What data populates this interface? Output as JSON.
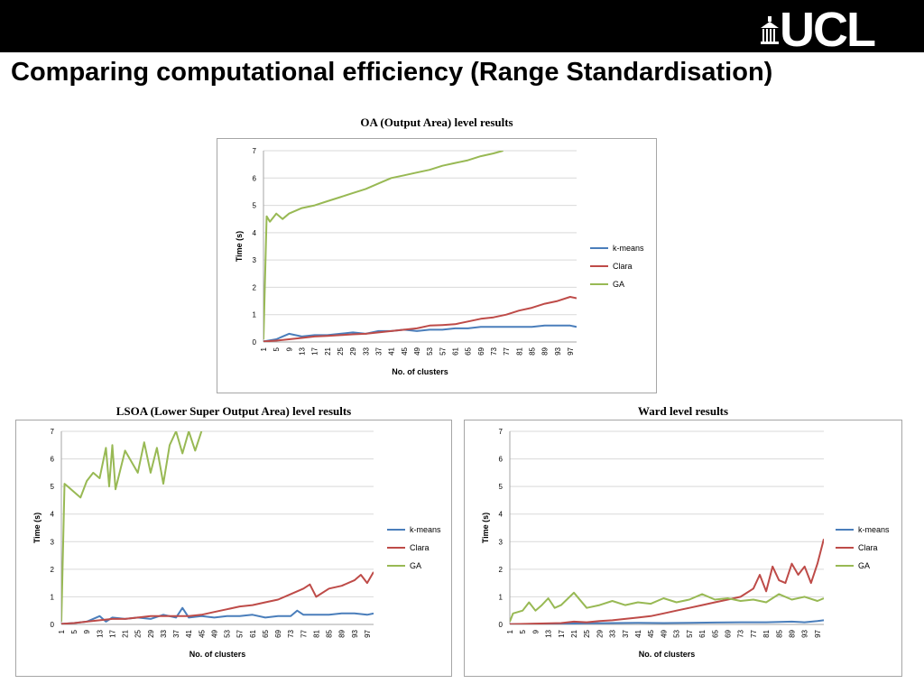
{
  "header": {
    "logo_text": "UCL",
    "title": "Comparing computational efficiency (Range Standardisation)"
  },
  "colors": {
    "kmeans": "#4a7ebb",
    "clara": "#be4b48",
    "ga": "#98b954",
    "grid": "#d9d9d9"
  },
  "chart_data": [
    {
      "id": "oa",
      "type": "line",
      "title": "OA (Output Area) level results",
      "xlabel": "No. of clusters",
      "ylabel": "Time (s)",
      "ylim": [
        0,
        7
      ],
      "yticks": [
        0,
        1,
        2,
        3,
        4,
        5,
        6,
        7
      ],
      "xlim": [
        1,
        99
      ],
      "xticks": [
        1,
        5,
        9,
        13,
        17,
        21,
        25,
        29,
        33,
        37,
        41,
        45,
        49,
        53,
        57,
        61,
        65,
        69,
        73,
        77,
        81,
        85,
        89,
        93,
        97
      ],
      "grid": true,
      "legend": "right",
      "series": [
        {
          "name": "k-means",
          "color": "#4a7ebb",
          "points": [
            [
              1,
              0.02
            ],
            [
              5,
              0.1
            ],
            [
              7,
              0.2
            ],
            [
              9,
              0.3
            ],
            [
              11,
              0.25
            ],
            [
              13,
              0.2
            ],
            [
              17,
              0.25
            ],
            [
              21,
              0.25
            ],
            [
              25,
              0.3
            ],
            [
              29,
              0.35
            ],
            [
              33,
              0.3
            ],
            [
              37,
              0.4
            ],
            [
              41,
              0.4
            ],
            [
              45,
              0.45
            ],
            [
              49,
              0.4
            ],
            [
              53,
              0.45
            ],
            [
              57,
              0.45
            ],
            [
              61,
              0.5
            ],
            [
              65,
              0.5
            ],
            [
              69,
              0.55
            ],
            [
              73,
              0.55
            ],
            [
              77,
              0.55
            ],
            [
              81,
              0.55
            ],
            [
              85,
              0.55
            ],
            [
              89,
              0.6
            ],
            [
              93,
              0.6
            ],
            [
              97,
              0.6
            ],
            [
              99,
              0.55
            ]
          ]
        },
        {
          "name": "Clara",
          "color": "#be4b48",
          "points": [
            [
              1,
              0.02
            ],
            [
              5,
              0.05
            ],
            [
              9,
              0.1
            ],
            [
              13,
              0.15
            ],
            [
              17,
              0.2
            ],
            [
              21,
              0.22
            ],
            [
              25,
              0.25
            ],
            [
              29,
              0.28
            ],
            [
              33,
              0.3
            ],
            [
              37,
              0.35
            ],
            [
              41,
              0.4
            ],
            [
              45,
              0.45
            ],
            [
              49,
              0.5
            ],
            [
              53,
              0.6
            ],
            [
              57,
              0.62
            ],
            [
              61,
              0.65
            ],
            [
              65,
              0.75
            ],
            [
              69,
              0.85
            ],
            [
              73,
              0.9
            ],
            [
              77,
              1.0
            ],
            [
              81,
              1.15
            ],
            [
              85,
              1.25
            ],
            [
              89,
              1.4
            ],
            [
              93,
              1.5
            ],
            [
              97,
              1.65
            ],
            [
              99,
              1.6
            ]
          ]
        },
        {
          "name": "GA",
          "color": "#98b954",
          "points": [
            [
              1,
              0.1
            ],
            [
              2,
              4.6
            ],
            [
              3,
              4.4
            ],
            [
              5,
              4.7
            ],
            [
              7,
              4.5
            ],
            [
              9,
              4.7
            ],
            [
              13,
              4.9
            ],
            [
              17,
              5.0
            ],
            [
              21,
              5.15
            ],
            [
              25,
              5.3
            ],
            [
              29,
              5.45
            ],
            [
              33,
              5.6
            ],
            [
              37,
              5.8
            ],
            [
              41,
              6.0
            ],
            [
              45,
              6.1
            ],
            [
              49,
              6.2
            ],
            [
              53,
              6.3
            ],
            [
              57,
              6.45
            ],
            [
              61,
              6.55
            ],
            [
              65,
              6.65
            ],
            [
              69,
              6.8
            ],
            [
              73,
              6.9
            ],
            [
              76,
              7.0
            ]
          ]
        }
      ]
    },
    {
      "id": "lsoa",
      "type": "line",
      "title": "LSOA (Lower Super Output Area) level results",
      "xlabel": "No. of clusters",
      "ylabel": "Time (s)",
      "ylim": [
        0,
        7
      ],
      "yticks": [
        0,
        1,
        2,
        3,
        4,
        5,
        6,
        7
      ],
      "xlim": [
        1,
        99
      ],
      "xticks": [
        1,
        5,
        9,
        13,
        17,
        21,
        25,
        29,
        33,
        37,
        41,
        45,
        49,
        53,
        57,
        61,
        65,
        69,
        73,
        77,
        81,
        85,
        89,
        93,
        97
      ],
      "grid": true,
      "legend": "right",
      "series": [
        {
          "name": "k-means",
          "color": "#4a7ebb",
          "points": [
            [
              1,
              0.02
            ],
            [
              5,
              0.05
            ],
            [
              9,
              0.1
            ],
            [
              13,
              0.3
            ],
            [
              15,
              0.1
            ],
            [
              17,
              0.25
            ],
            [
              21,
              0.2
            ],
            [
              25,
              0.25
            ],
            [
              29,
              0.2
            ],
            [
              33,
              0.35
            ],
            [
              37,
              0.25
            ],
            [
              39,
              0.6
            ],
            [
              41,
              0.25
            ],
            [
              45,
              0.3
            ],
            [
              49,
              0.25
            ],
            [
              53,
              0.3
            ],
            [
              57,
              0.3
            ],
            [
              61,
              0.35
            ],
            [
              65,
              0.25
            ],
            [
              69,
              0.3
            ],
            [
              73,
              0.3
            ],
            [
              75,
              0.5
            ],
            [
              77,
              0.35
            ],
            [
              81,
              0.35
            ],
            [
              85,
              0.35
            ],
            [
              89,
              0.4
            ],
            [
              93,
              0.4
            ],
            [
              97,
              0.35
            ],
            [
              99,
              0.4
            ]
          ]
        },
        {
          "name": "Clara",
          "color": "#be4b48",
          "points": [
            [
              1,
              0.02
            ],
            [
              5,
              0.05
            ],
            [
              9,
              0.1
            ],
            [
              13,
              0.15
            ],
            [
              17,
              0.2
            ],
            [
              21,
              0.2
            ],
            [
              25,
              0.25
            ],
            [
              29,
              0.3
            ],
            [
              33,
              0.3
            ],
            [
              37,
              0.3
            ],
            [
              41,
              0.3
            ],
            [
              45,
              0.35
            ],
            [
              49,
              0.45
            ],
            [
              53,
              0.55
            ],
            [
              57,
              0.65
            ],
            [
              61,
              0.7
            ],
            [
              65,
              0.8
            ],
            [
              69,
              0.9
            ],
            [
              73,
              1.1
            ],
            [
              77,
              1.3
            ],
            [
              79,
              1.45
            ],
            [
              81,
              1.0
            ],
            [
              85,
              1.3
            ],
            [
              89,
              1.4
            ],
            [
              93,
              1.6
            ],
            [
              95,
              1.8
            ],
            [
              97,
              1.5
            ],
            [
              99,
              1.9
            ]
          ]
        },
        {
          "name": "GA",
          "color": "#98b954",
          "points": [
            [
              1,
              0.1
            ],
            [
              2,
              5.1
            ],
            [
              3,
              5.0
            ],
            [
              5,
              4.8
            ],
            [
              7,
              4.6
            ],
            [
              9,
              5.2
            ],
            [
              11,
              5.5
            ],
            [
              13,
              5.3
            ],
            [
              15,
              6.4
            ],
            [
              16,
              5.0
            ],
            [
              17,
              6.5
            ],
            [
              18,
              4.9
            ],
            [
              21,
              6.3
            ],
            [
              25,
              5.5
            ],
            [
              27,
              6.6
            ],
            [
              29,
              5.5
            ],
            [
              31,
              6.4
            ],
            [
              33,
              5.1
            ],
            [
              35,
              6.5
            ],
            [
              37,
              7.0
            ],
            [
              39,
              6.2
            ],
            [
              41,
              7.0
            ],
            [
              43,
              6.3
            ],
            [
              45,
              7.0
            ]
          ]
        }
      ]
    },
    {
      "id": "ward",
      "type": "line",
      "title": "Ward level results",
      "xlabel": "No. of clusters",
      "ylabel": "Time (s)",
      "ylim": [
        0,
        7
      ],
      "yticks": [
        0,
        1,
        2,
        3,
        4,
        5,
        6,
        7
      ],
      "xlim": [
        1,
        99
      ],
      "xticks": [
        1,
        5,
        9,
        13,
        17,
        21,
        25,
        29,
        33,
        37,
        41,
        45,
        49,
        53,
        57,
        61,
        65,
        69,
        73,
        77,
        81,
        85,
        89,
        93,
        97
      ],
      "grid": true,
      "legend": "right",
      "series": [
        {
          "name": "k-means",
          "color": "#4a7ebb",
          "points": [
            [
              1,
              0.01
            ],
            [
              9,
              0.02
            ],
            [
              17,
              0.03
            ],
            [
              25,
              0.04
            ],
            [
              33,
              0.05
            ],
            [
              41,
              0.06
            ],
            [
              49,
              0.05
            ],
            [
              57,
              0.06
            ],
            [
              65,
              0.07
            ],
            [
              73,
              0.08
            ],
            [
              81,
              0.08
            ],
            [
              89,
              0.1
            ],
            [
              93,
              0.08
            ],
            [
              97,
              0.12
            ],
            [
              99,
              0.15
            ]
          ]
        },
        {
          "name": "Clara",
          "color": "#be4b48",
          "points": [
            [
              1,
              0.01
            ],
            [
              9,
              0.03
            ],
            [
              17,
              0.05
            ],
            [
              21,
              0.1
            ],
            [
              25,
              0.08
            ],
            [
              29,
              0.12
            ],
            [
              33,
              0.15
            ],
            [
              37,
              0.2
            ],
            [
              41,
              0.25
            ],
            [
              45,
              0.3
            ],
            [
              49,
              0.4
            ],
            [
              53,
              0.5
            ],
            [
              57,
              0.6
            ],
            [
              61,
              0.7
            ],
            [
              65,
              0.8
            ],
            [
              69,
              0.9
            ],
            [
              73,
              1.0
            ],
            [
              77,
              1.3
            ],
            [
              79,
              1.8
            ],
            [
              81,
              1.2
            ],
            [
              83,
              2.1
            ],
            [
              85,
              1.6
            ],
            [
              87,
              1.5
            ],
            [
              89,
              2.2
            ],
            [
              91,
              1.8
            ],
            [
              93,
              2.1
            ],
            [
              95,
              1.5
            ],
            [
              97,
              2.2
            ],
            [
              99,
              3.1
            ]
          ]
        },
        {
          "name": "GA",
          "color": "#98b954",
          "points": [
            [
              1,
              0.1
            ],
            [
              2,
              0.4
            ],
            [
              5,
              0.5
            ],
            [
              7,
              0.8
            ],
            [
              9,
              0.5
            ],
            [
              11,
              0.7
            ],
            [
              13,
              0.95
            ],
            [
              15,
              0.6
            ],
            [
              17,
              0.7
            ],
            [
              21,
              1.15
            ],
            [
              25,
              0.6
            ],
            [
              29,
              0.7
            ],
            [
              33,
              0.85
            ],
            [
              37,
              0.7
            ],
            [
              41,
              0.8
            ],
            [
              45,
              0.75
            ],
            [
              49,
              0.95
            ],
            [
              53,
              0.8
            ],
            [
              57,
              0.9
            ],
            [
              61,
              1.1
            ],
            [
              65,
              0.9
            ],
            [
              69,
              0.95
            ],
            [
              73,
              0.85
            ],
            [
              77,
              0.9
            ],
            [
              81,
              0.8
            ],
            [
              85,
              1.1
            ],
            [
              89,
              0.9
            ],
            [
              93,
              1.0
            ],
            [
              97,
              0.85
            ],
            [
              99,
              0.95
            ]
          ]
        }
      ]
    }
  ]
}
